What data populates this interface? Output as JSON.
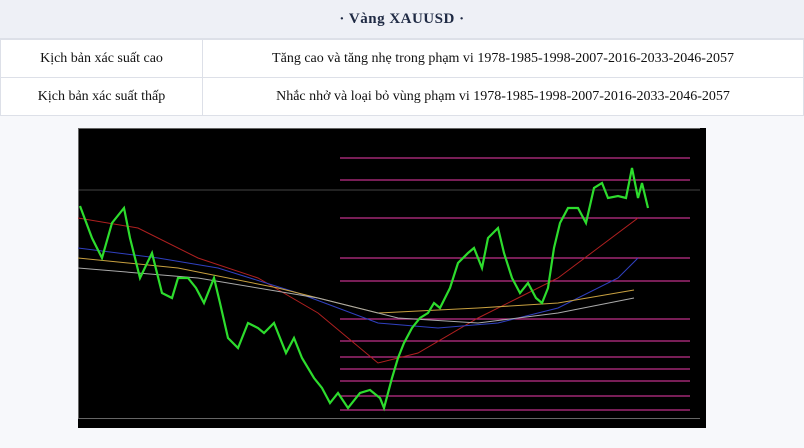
{
  "header": {
    "title": "· Vàng XAUUSD ·"
  },
  "table": {
    "rows": [
      [
        "Kịch bản xác suất cao",
        "Tăng cao và tăng nhẹ trong phạm vi 1978-1985-1998-2007-2016-2033-2046-2057"
      ],
      [
        "Kịch bản xác suất thấp",
        "Nhắc nhở và loại bỏ vùng phạm vi 1978-1985-1998-2007-2016-2033-2046-2057"
      ]
    ]
  }
}
